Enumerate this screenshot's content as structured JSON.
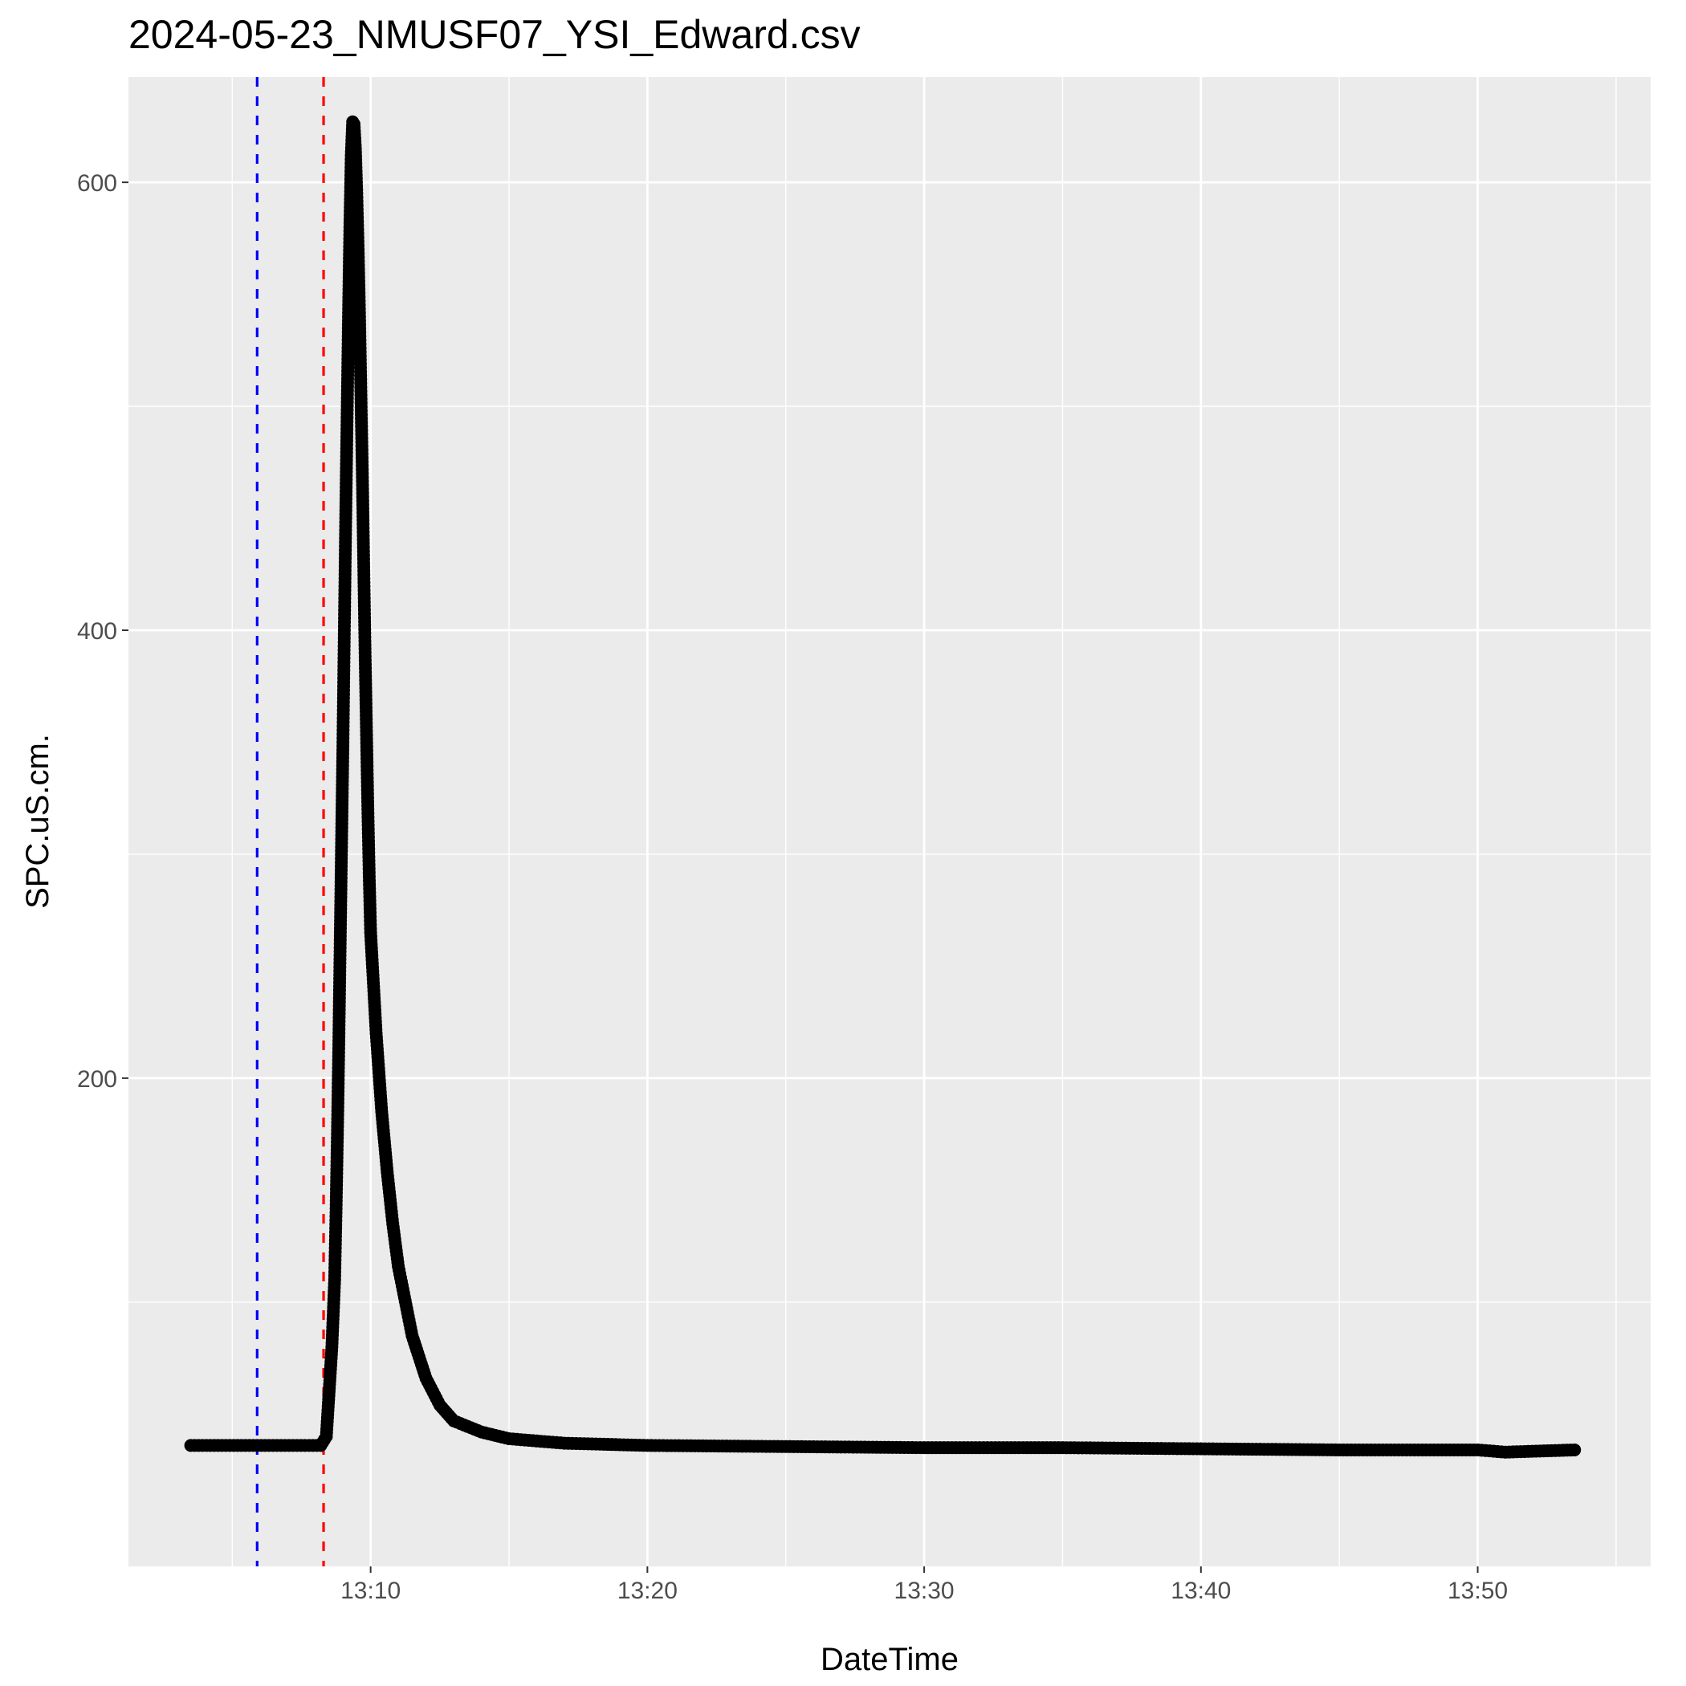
{
  "chart_data": {
    "type": "scatter",
    "title": "2024-05-23_NMUSF07_YSI_Edward.csv",
    "xlabel": "DateTime",
    "ylabel": "SPC.uS.cm.",
    "x_unit": "minutes after 13:00",
    "xlim": [
      1.25,
      56.25
    ],
    "ylim": [
      -18,
      647
    ],
    "x_ticks": [
      {
        "value": 10,
        "label": "13:10"
      },
      {
        "value": 20,
        "label": "13:20"
      },
      {
        "value": 30,
        "label": "13:30"
      },
      {
        "value": 40,
        "label": "13:40"
      },
      {
        "value": 50,
        "label": "13:50"
      }
    ],
    "x_minor_grid": [
      5,
      15,
      25,
      35,
      45,
      55
    ],
    "y_ticks": [
      {
        "value": 200,
        "label": "200"
      },
      {
        "value": 400,
        "label": "400"
      },
      {
        "value": 600,
        "label": "600"
      }
    ],
    "y_minor_grid": [
      100,
      300,
      500
    ],
    "grid": true,
    "vlines": [
      {
        "x": 5.9,
        "color": "#0000ff",
        "style": "dashed"
      },
      {
        "x": 8.3,
        "color": "#ff0000",
        "style": "dashed"
      }
    ],
    "series": [
      {
        "color": "#000000",
        "points": [
          [
            3.5,
            36
          ],
          [
            5.9,
            36
          ],
          [
            8.2,
            36
          ],
          [
            8.4,
            40
          ],
          [
            8.5,
            60
          ],
          [
            8.6,
            80
          ],
          [
            8.7,
            110
          ],
          [
            8.75,
            140
          ],
          [
            8.8,
            175
          ],
          [
            8.85,
            215
          ],
          [
            8.9,
            260
          ],
          [
            8.95,
            305
          ],
          [
            9.0,
            350
          ],
          [
            9.05,
            400
          ],
          [
            9.1,
            450
          ],
          [
            9.15,
            495
          ],
          [
            9.2,
            540
          ],
          [
            9.25,
            580
          ],
          [
            9.3,
            612
          ],
          [
            9.35,
            627
          ],
          [
            9.4,
            626
          ],
          [
            9.45,
            615
          ],
          [
            9.5,
            595
          ],
          [
            9.55,
            570
          ],
          [
            9.6,
            540
          ],
          [
            9.65,
            505
          ],
          [
            9.7,
            470
          ],
          [
            9.75,
            430
          ],
          [
            9.8,
            390
          ],
          [
            9.85,
            355
          ],
          [
            9.9,
            320
          ],
          [
            9.95,
            290
          ],
          [
            10.0,
            265
          ],
          [
            10.2,
            220
          ],
          [
            10.4,
            185
          ],
          [
            10.6,
            158
          ],
          [
            10.8,
            135
          ],
          [
            11.0,
            116
          ],
          [
            11.5,
            85
          ],
          [
            12.0,
            66
          ],
          [
            12.5,
            54
          ],
          [
            13.0,
            47
          ],
          [
            14.0,
            42
          ],
          [
            15.0,
            39
          ],
          [
            17.0,
            37
          ],
          [
            20.0,
            36
          ],
          [
            25.0,
            35.5
          ],
          [
            30.0,
            35
          ],
          [
            35.0,
            35
          ],
          [
            40.0,
            34.5
          ],
          [
            45.0,
            34
          ],
          [
            50.0,
            34
          ],
          [
            51.0,
            33
          ],
          [
            53.5,
            34
          ]
        ]
      }
    ]
  }
}
